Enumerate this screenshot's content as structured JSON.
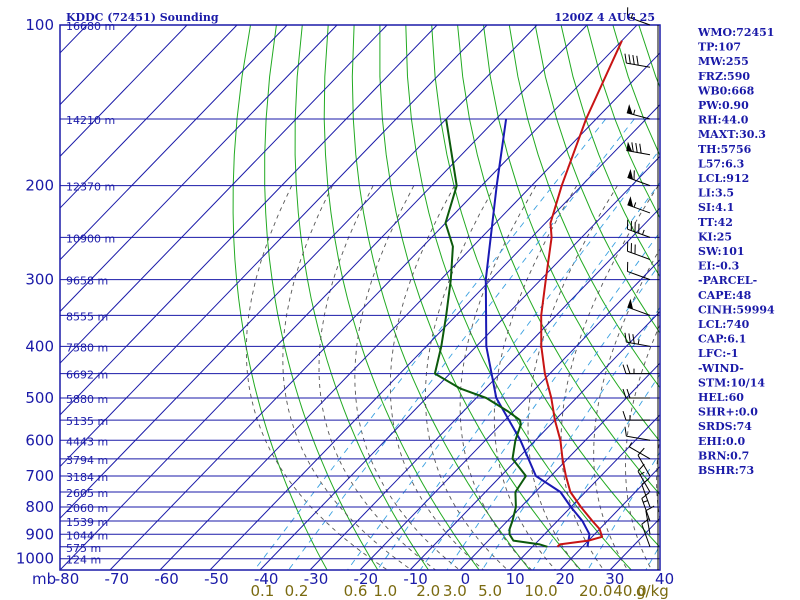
{
  "title": "KDDC (72451) Sounding",
  "time_label": "1200Z  4 AUG 25",
  "units": {
    "pressure": "mb",
    "mixing_ratio": "g/kg"
  },
  "indices": [
    "WMO:72451",
    "TP:107",
    "MW:255",
    "FRZ:590",
    "WB0:668",
    "PW:0.90",
    "RH:44.0",
    "MAXT:30.3",
    "TH:5756",
    "L57:6.3",
    "LCL:912",
    "LI:3.5",
    "SI:4.1",
    "TT:42",
    "KI:25",
    "SW:101",
    "EI:-0.3",
    "-PARCEL-",
    "CAPE:48",
    "CINH:59994",
    "LCL:740",
    "CAP:6.1",
    "LFC:-1",
    "-WIND-",
    "STM:10/14",
    "HEL:60",
    "SHR+:0.0",
    "SRDS:74",
    "EHI:0.0",
    "BRN:0.7",
    "BSHR:73"
  ],
  "colors": {
    "frame": "#1a1aa8",
    "isotherm": "#1a1aa8",
    "dry_adiabat": "#22aa22",
    "moist_adiabat": "#555555",
    "mixing_ratio": "#3aa0e0",
    "temperature": "#c81414",
    "dewpoint": "#0c5a0c",
    "parcel": "#1a1ab4",
    "wind": "#000000",
    "mix_label": "#7a6a10"
  },
  "chart_data": {
    "type": "skew-t",
    "pressure_levels": [
      "100",
      "200",
      "300",
      "400",
      "500",
      "600",
      "700",
      "800",
      "900",
      "1000"
    ],
    "height_labels": [
      {
        "p": 100,
        "label": "16680 m"
      },
      {
        "p": 150,
        "label": "14210 m"
      },
      {
        "p": 200,
        "label": "12370 m"
      },
      {
        "p": 250,
        "label": "10900 m"
      },
      {
        "p": 300,
        "label": "9658 m"
      },
      {
        "p": 350,
        "label": "8555 m"
      },
      {
        "p": 400,
        "label": "7580 m"
      },
      {
        "p": 450,
        "label": "6692 m"
      },
      {
        "p": 500,
        "label": "5880 m"
      },
      {
        "p": 550,
        "label": "5135 m"
      },
      {
        "p": 600,
        "label": "4443 m"
      },
      {
        "p": 650,
        "label": "3794 m"
      },
      {
        "p": 700,
        "label": "3184 m"
      },
      {
        "p": 750,
        "label": "2605 m"
      },
      {
        "p": 800,
        "label": "2060 m"
      },
      {
        "p": 850,
        "label": "1539 m"
      },
      {
        "p": 900,
        "label": "1044 m"
      },
      {
        "p": 950,
        "label": "575 m"
      },
      {
        "p": 1000,
        "label": "124 m"
      }
    ],
    "x_ticks": [
      "-80",
      "-70",
      "-60",
      "-50",
      "-40",
      "-30",
      "-20",
      "-10",
      "0",
      "10",
      "20",
      "30",
      "40"
    ],
    "mixing_ratio_labels": [
      "0.1",
      "0.2",
      "0.6",
      "1.0",
      "2.0",
      "3.0",
      "5.0",
      "10.0",
      "20.0",
      "40.0"
    ],
    "mixing_ratio_values": [
      0.1,
      0.2,
      0.6,
      1.0,
      2.0,
      3.0,
      5.0,
      10.0,
      20.0,
      40.0
    ],
    "temperature": [
      [
        107,
        -70
      ],
      [
        150,
        -62
      ],
      [
        200,
        -54
      ],
      [
        235,
        -49
      ],
      [
        250,
        -46
      ],
      [
        300,
        -39
      ],
      [
        350,
        -33
      ],
      [
        400,
        -27
      ],
      [
        450,
        -21
      ],
      [
        500,
        -15
      ],
      [
        550,
        -10
      ],
      [
        600,
        -5
      ],
      [
        650,
        -1
      ],
      [
        700,
        3
      ],
      [
        750,
        7
      ],
      [
        800,
        12
      ],
      [
        850,
        17
      ],
      [
        880,
        20
      ],
      [
        910,
        22
      ],
      [
        925,
        20
      ],
      [
        940,
        15
      ],
      [
        950,
        15
      ]
    ],
    "dewpoint": [
      [
        150,
        -90
      ],
      [
        200,
        -75
      ],
      [
        235,
        -70
      ],
      [
        260,
        -64
      ],
      [
        300,
        -58
      ],
      [
        350,
        -52
      ],
      [
        400,
        -47
      ],
      [
        450,
        -43
      ],
      [
        480,
        -35
      ],
      [
        500,
        -28
      ],
      [
        530,
        -21
      ],
      [
        550,
        -17
      ],
      [
        560,
        -16
      ],
      [
        600,
        -14
      ],
      [
        650,
        -11
      ],
      [
        700,
        -5
      ],
      [
        750,
        -4
      ],
      [
        800,
        -1
      ],
      [
        850,
        1
      ],
      [
        880,
        2
      ],
      [
        900,
        3
      ],
      [
        925,
        5
      ],
      [
        940,
        11
      ],
      [
        950,
        13
      ]
    ],
    "parcel": [
      [
        150,
        -78
      ],
      [
        200,
        -67
      ],
      [
        300,
        -51
      ],
      [
        400,
        -38
      ],
      [
        500,
        -26
      ],
      [
        600,
        -13
      ],
      [
        700,
        -3
      ],
      [
        750,
        5
      ],
      [
        800,
        10
      ],
      [
        850,
        15
      ],
      [
        900,
        19
      ],
      [
        950,
        21
      ]
    ],
    "wind": [
      [
        100,
        290,
        15
      ],
      [
        120,
        280,
        40
      ],
      [
        150,
        285,
        55
      ],
      [
        175,
        280,
        80
      ],
      [
        200,
        290,
        60
      ],
      [
        225,
        290,
        55
      ],
      [
        250,
        290,
        45
      ],
      [
        275,
        290,
        30
      ],
      [
        300,
        290,
        10
      ],
      [
        350,
        290,
        50
      ],
      [
        400,
        280,
        35
      ],
      [
        450,
        270,
        25
      ],
      [
        500,
        270,
        20
      ],
      [
        550,
        270,
        15
      ],
      [
        600,
        280,
        10
      ],
      [
        650,
        300,
        5
      ],
      [
        700,
        330,
        10
      ],
      [
        750,
        330,
        15
      ],
      [
        800,
        340,
        10
      ],
      [
        850,
        340,
        15
      ],
      [
        900,
        350,
        10
      ],
      [
        950,
        340,
        10
      ]
    ]
  }
}
